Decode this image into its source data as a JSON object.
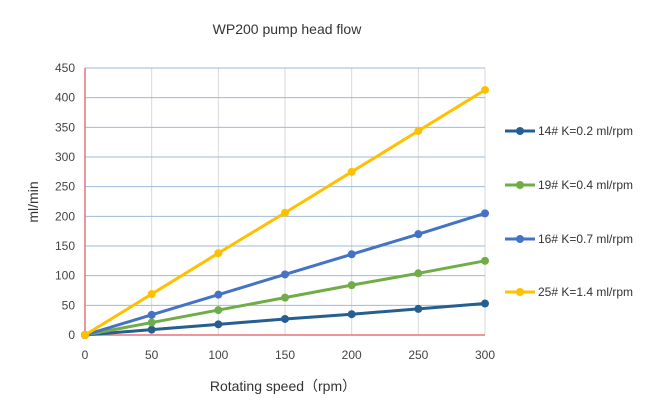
{
  "chart_data": {
    "type": "line",
    "title": "WP200 pump head flow",
    "xlabel": "Rotating speed（rpm）",
    "ylabel": "ml/min",
    "x": [
      0,
      50,
      100,
      150,
      200,
      250,
      300
    ],
    "xlim": [
      0,
      300
    ],
    "ylim": [
      0,
      450
    ],
    "xticks": [
      "0",
      "50",
      "100",
      "150",
      "200",
      "250",
      "300"
    ],
    "yticks": [
      "0",
      "50",
      "100",
      "150",
      "200",
      "250",
      "300",
      "350",
      "400",
      "450"
    ],
    "grid": true,
    "legend_position": "right",
    "series": [
      {
        "name": "14# K=0.2 ml/rpm",
        "color": "#255e91",
        "values": [
          0,
          9,
          18,
          27,
          35,
          44,
          53
        ]
      },
      {
        "name": "19# K=0.4 ml/rpm",
        "color": "#70ad47",
        "values": [
          0,
          21,
          42,
          63,
          84,
          104,
          125
        ]
      },
      {
        "name": "16# K=0.7 ml/rpm",
        "color": "#4472c4",
        "values": [
          0,
          34,
          68,
          102,
          136,
          170,
          205
        ]
      },
      {
        "name": "25# K=1.4 ml/rpm",
        "color": "#ffc000",
        "values": [
          0,
          69,
          138,
          206,
          275,
          344,
          413
        ]
      }
    ],
    "colors": {
      "h_grid": "#9dbbd6",
      "v_grid": "#d9d9d9",
      "axis": "#e8737a"
    }
  }
}
